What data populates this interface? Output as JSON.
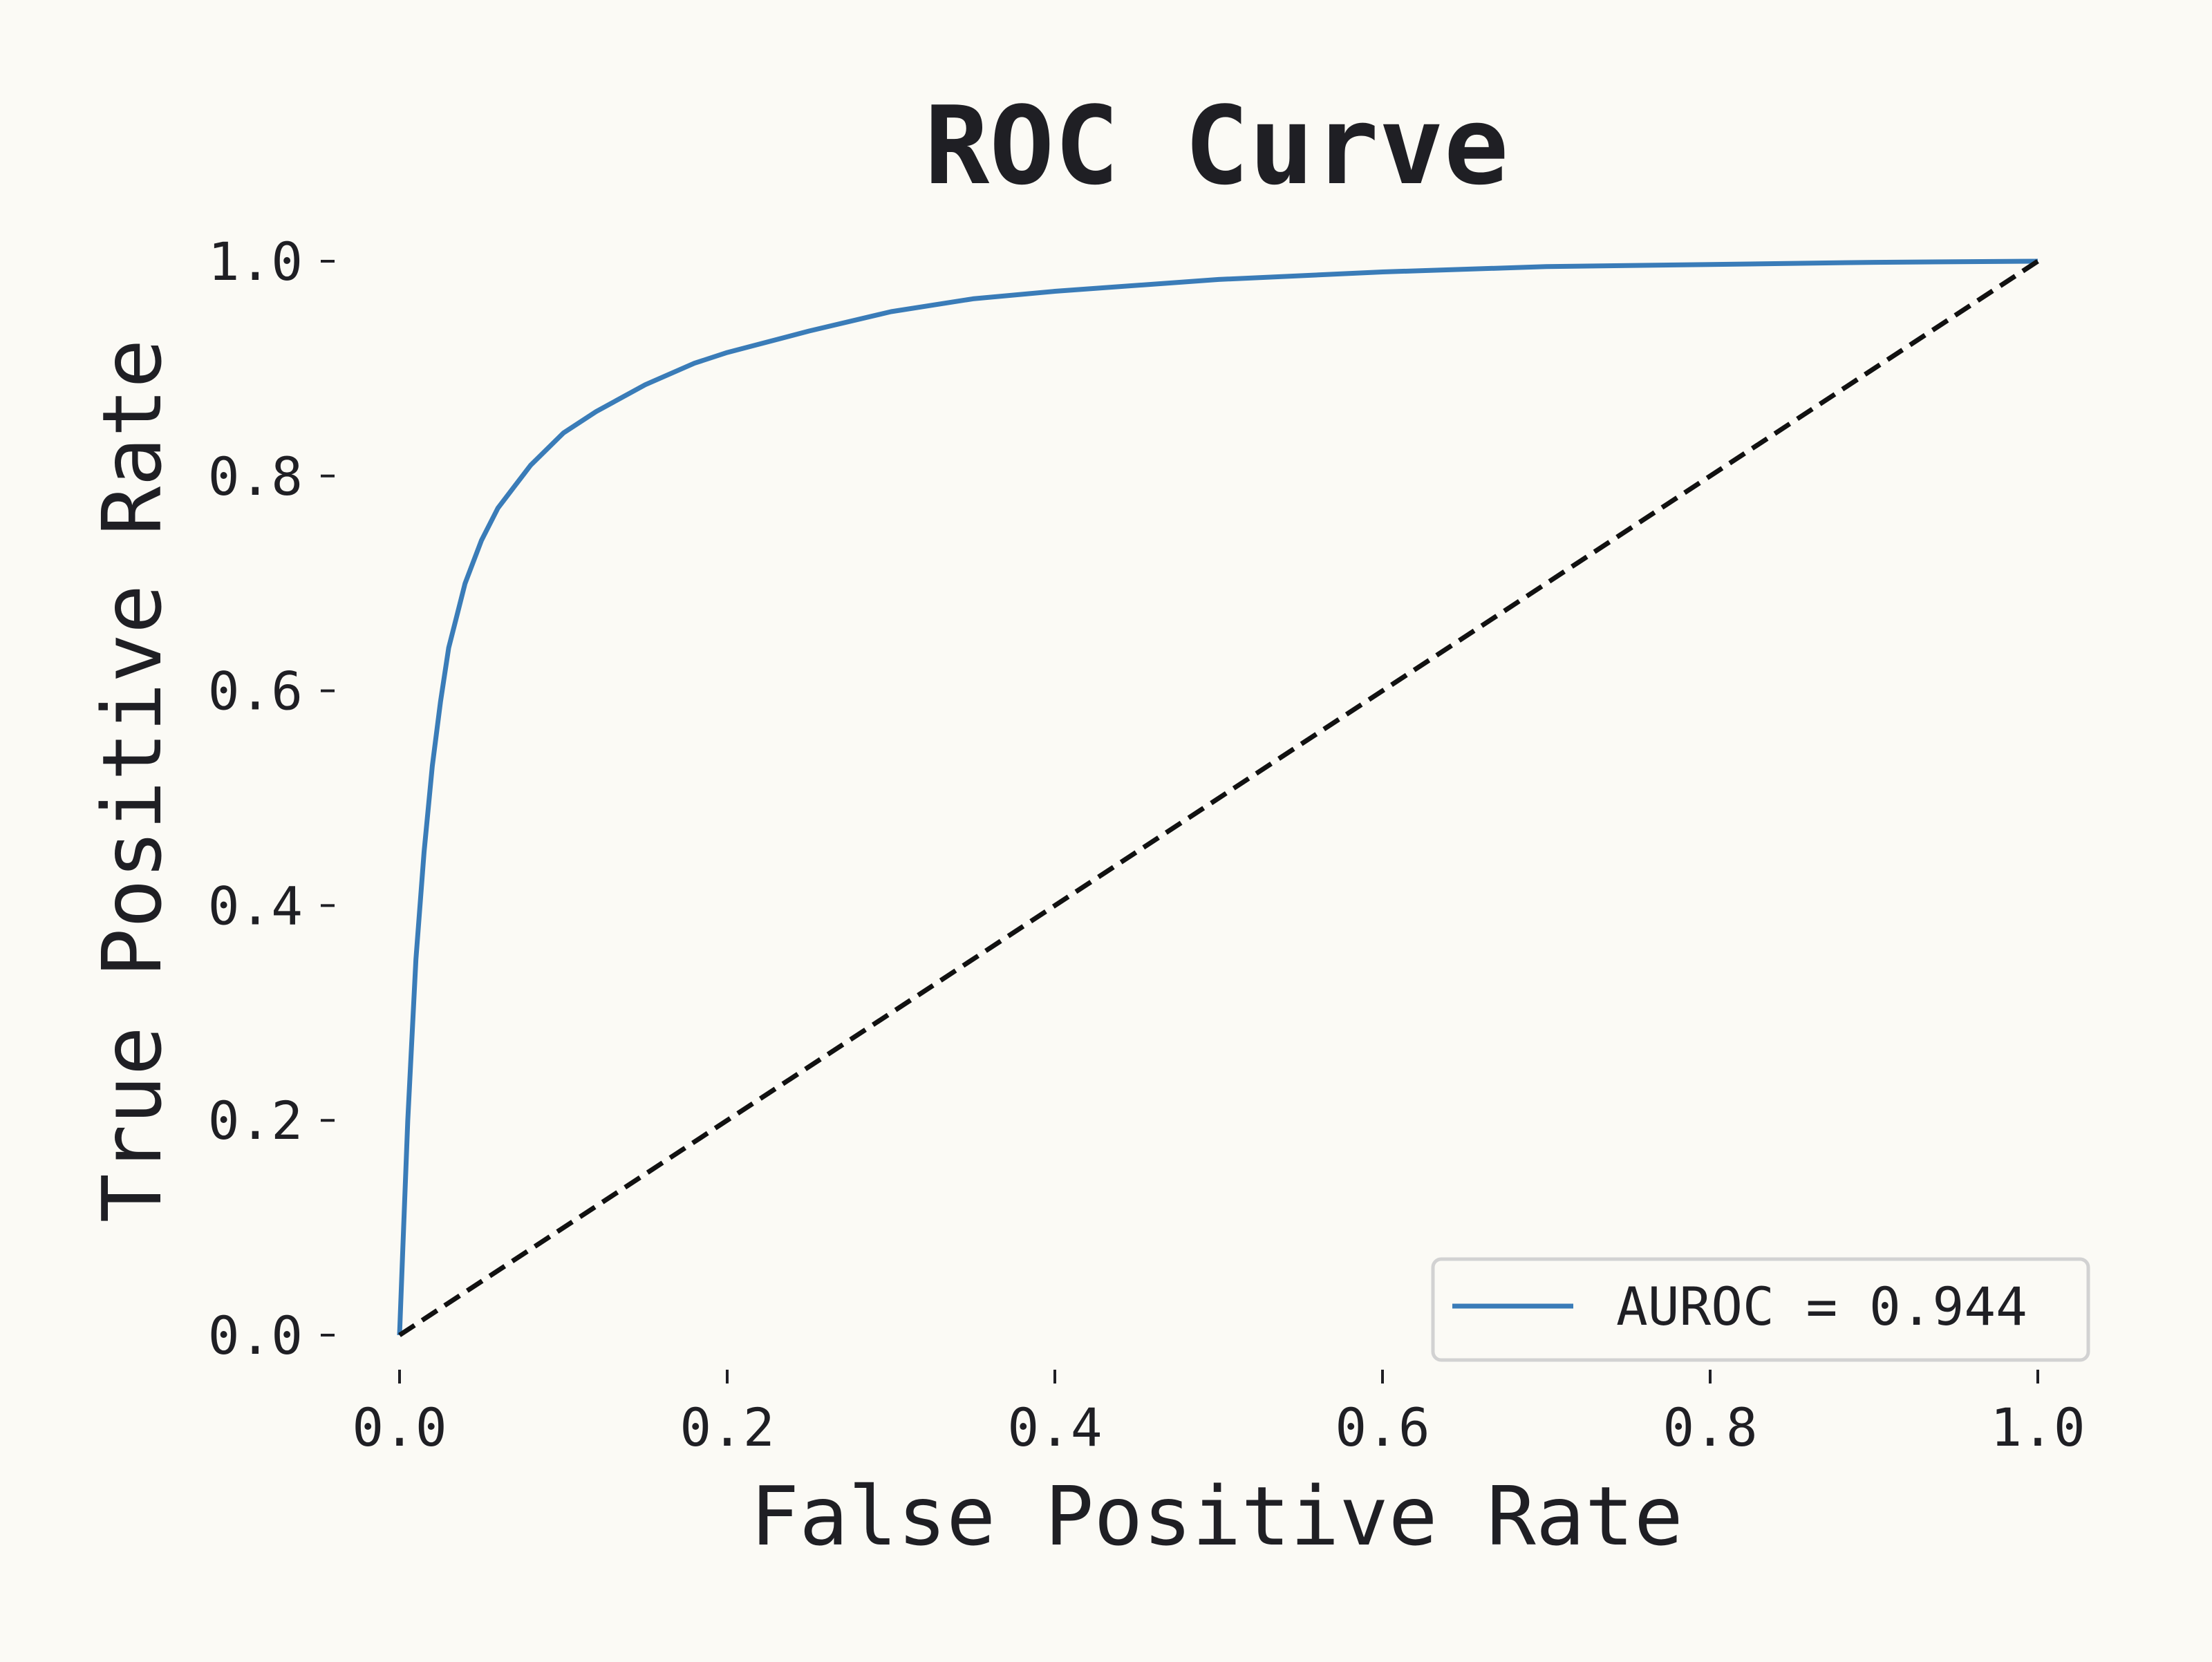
{
  "chart_data": {
    "type": "line",
    "title": "ROC Curve",
    "xlabel": "False Positive Rate",
    "ylabel": "True Positive Rate",
    "xlim": [
      0.0,
      1.0
    ],
    "ylim": [
      0.0,
      1.0
    ],
    "x_ticks": [
      0.0,
      0.2,
      0.4,
      0.6,
      0.8,
      1.0
    ],
    "y_ticks": [
      0.0,
      0.2,
      0.4,
      0.6,
      0.8,
      1.0
    ],
    "x_tick_labels": [
      "0.0",
      "0.2",
      "0.4",
      "0.6",
      "0.8",
      "1.0"
    ],
    "y_tick_labels": [
      "0.0",
      "0.2",
      "0.4",
      "0.6",
      "0.8",
      "1.0"
    ],
    "grid": false,
    "legend_placement": "lower-right",
    "series": [
      {
        "name": "AUROC = 0.944",
        "color": "#3a7cb8",
        "style": "solid",
        "x": [
          0.0,
          0.002,
          0.005,
          0.01,
          0.015,
          0.02,
          0.025,
          0.03,
          0.035,
          0.04,
          0.05,
          0.06,
          0.07,
          0.08,
          0.1,
          0.12,
          0.15,
          0.18,
          0.2,
          0.25,
          0.3,
          0.35,
          0.4,
          0.5,
          0.6,
          0.7,
          0.8,
          0.9,
          1.0
        ],
        "y": [
          0.0,
          0.08,
          0.2,
          0.35,
          0.45,
          0.53,
          0.59,
          0.64,
          0.67,
          0.7,
          0.74,
          0.77,
          0.79,
          0.81,
          0.84,
          0.86,
          0.885,
          0.905,
          0.915,
          0.935,
          0.953,
          0.965,
          0.972,
          0.983,
          0.99,
          0.995,
          0.997,
          0.999,
          1.0
        ]
      },
      {
        "name": "",
        "color": "#111111",
        "style": "dashed",
        "x": [
          0.0,
          1.0
        ],
        "y": [
          0.0,
          1.0
        ]
      }
    ]
  }
}
